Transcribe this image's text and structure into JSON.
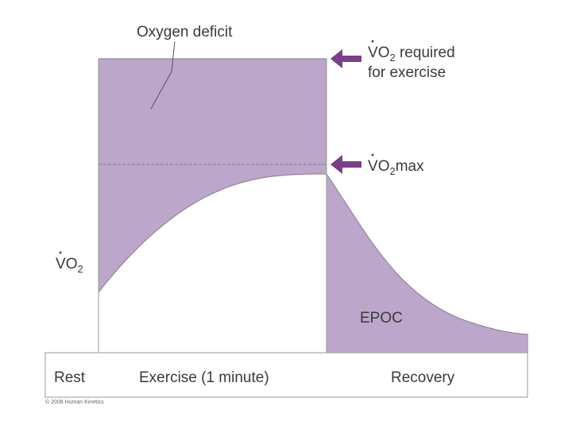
{
  "diagram": {
    "labels": {
      "oxygen_deficit": "Oxygen deficit",
      "vo2_required_line1_v": "V",
      "vo2_required_line1_o": "O",
      "vo2_required_line1_sub": "2",
      "vo2_required_line1_rest": " required",
      "vo2_required_line2": "for exercise",
      "vo2max_v": "V",
      "vo2max_o": "O",
      "vo2max_sub": "2",
      "vo2max_rest": "max",
      "vo2_axis_v": "V",
      "vo2_axis_o": "O",
      "vo2_axis_sub": "2",
      "epoc": "EPOC"
    },
    "phases": {
      "rest": "Rest",
      "exercise": "Exercise (1 minute)",
      "recovery": "Recovery"
    },
    "colors": {
      "shade": "#bca6c9",
      "arrow": "#7a3f86",
      "line": "#8a7a8f",
      "text": "#3a3a3a"
    },
    "icons": [
      "left-arrow-icon"
    ]
  },
  "footer": {
    "copyright": "© 2008 Human Kinetics"
  }
}
